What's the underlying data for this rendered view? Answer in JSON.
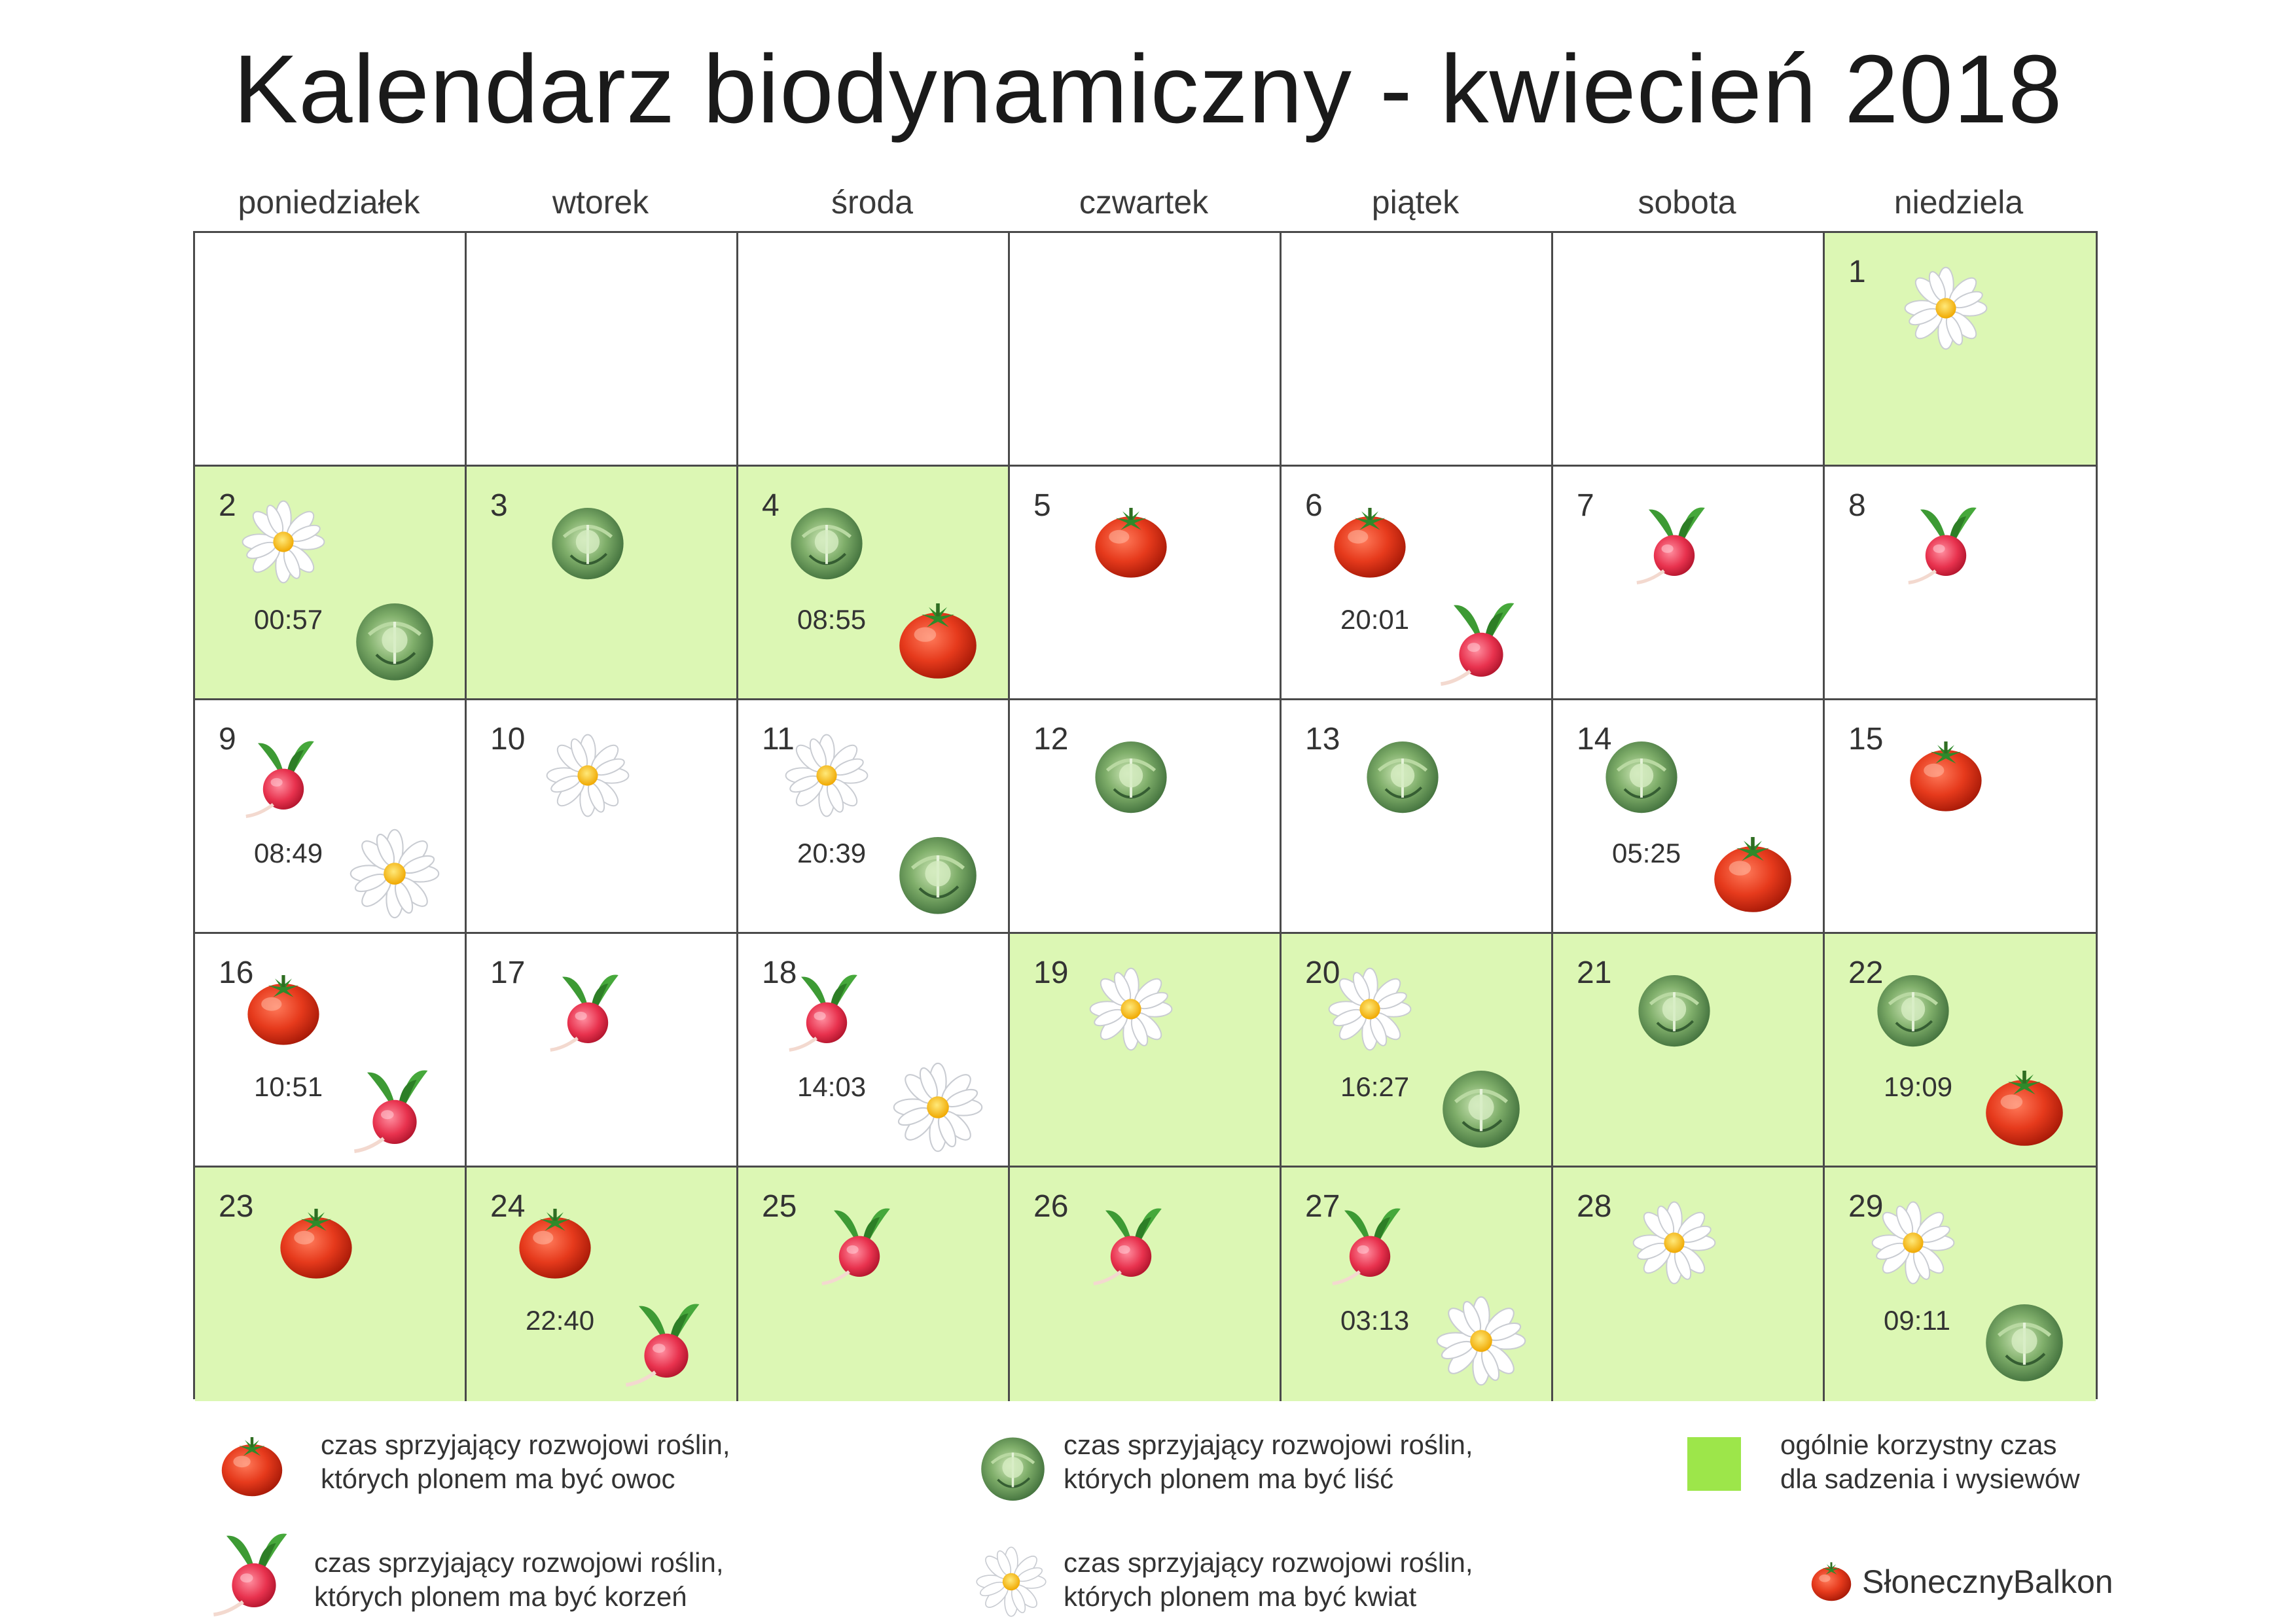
{
  "title": "Kalendarz biodynamiczny - kwiecień 2018",
  "weekdays": [
    "poniedziałek",
    "wtorek",
    "środa",
    "czwartek",
    "piątek",
    "sobota",
    "niedziela"
  ],
  "colors": {
    "favorable_bg": "#dcf7b4",
    "legend_swatch": "#9de64a",
    "grid_line": "#4a4a4a"
  },
  "cells": [
    {
      "day": "1",
      "col": 6,
      "row": 0,
      "good": true,
      "icons": [
        "flower"
      ],
      "time": ""
    },
    {
      "day": "2",
      "col": 0,
      "row": 1,
      "good": true,
      "icons": [
        "flower",
        "leaf"
      ],
      "time": "00:57"
    },
    {
      "day": "3",
      "col": 1,
      "row": 1,
      "good": true,
      "icons": [
        "leaf"
      ],
      "time": ""
    },
    {
      "day": "4",
      "col": 2,
      "row": 1,
      "good": true,
      "icons": [
        "leaf",
        "fruit"
      ],
      "time": "08:55"
    },
    {
      "day": "5",
      "col": 3,
      "row": 1,
      "good": false,
      "icons": [
        "fruit"
      ],
      "time": ""
    },
    {
      "day": "6",
      "col": 4,
      "row": 1,
      "good": false,
      "icons": [
        "fruit",
        "root"
      ],
      "time": "20:01"
    },
    {
      "day": "7",
      "col": 5,
      "row": 1,
      "good": false,
      "icons": [
        "root"
      ],
      "time": ""
    },
    {
      "day": "8",
      "col": 6,
      "row": 1,
      "good": false,
      "icons": [
        "root"
      ],
      "time": ""
    },
    {
      "day": "9",
      "col": 0,
      "row": 2,
      "good": false,
      "icons": [
        "root",
        "flower"
      ],
      "time": "08:49"
    },
    {
      "day": "10",
      "col": 1,
      "row": 2,
      "good": false,
      "icons": [
        "flower"
      ],
      "time": ""
    },
    {
      "day": "11",
      "col": 2,
      "row": 2,
      "good": false,
      "icons": [
        "flower",
        "leaf"
      ],
      "time": "20:39"
    },
    {
      "day": "12",
      "col": 3,
      "row": 2,
      "good": false,
      "icons": [
        "leaf"
      ],
      "time": ""
    },
    {
      "day": "13",
      "col": 4,
      "row": 2,
      "good": false,
      "icons": [
        "leaf"
      ],
      "time": ""
    },
    {
      "day": "14",
      "col": 5,
      "row": 2,
      "good": false,
      "icons": [
        "leaf",
        "fruit"
      ],
      "time": "05:25"
    },
    {
      "day": "15",
      "col": 6,
      "row": 2,
      "good": false,
      "icons": [
        "fruit"
      ],
      "time": ""
    },
    {
      "day": "16",
      "col": 0,
      "row": 3,
      "good": false,
      "icons": [
        "fruit",
        "root"
      ],
      "time": "10:51"
    },
    {
      "day": "17",
      "col": 1,
      "row": 3,
      "good": false,
      "icons": [
        "root"
      ],
      "time": ""
    },
    {
      "day": "18",
      "col": 2,
      "row": 3,
      "good": false,
      "icons": [
        "root",
        "flower"
      ],
      "time": "14:03"
    },
    {
      "day": "19",
      "col": 3,
      "row": 3,
      "good": true,
      "icons": [
        "flower"
      ],
      "time": ""
    },
    {
      "day": "20",
      "col": 4,
      "row": 3,
      "good": true,
      "icons": [
        "flower",
        "leaf"
      ],
      "time": "16:27"
    },
    {
      "day": "21",
      "col": 5,
      "row": 3,
      "good": true,
      "icons": [
        "leaf"
      ],
      "time": ""
    },
    {
      "day": "22",
      "col": 6,
      "row": 3,
      "good": true,
      "icons": [
        "leaf",
        "fruit"
      ],
      "time": "19:09"
    },
    {
      "day": "23",
      "col": 0,
      "row": 4,
      "good": true,
      "icons": [
        "fruit"
      ],
      "time": ""
    },
    {
      "day": "24",
      "col": 1,
      "row": 4,
      "good": true,
      "icons": [
        "fruit",
        "root"
      ],
      "time": "22:40"
    },
    {
      "day": "25",
      "col": 2,
      "row": 4,
      "good": true,
      "icons": [
        "root"
      ],
      "time": ""
    },
    {
      "day": "26",
      "col": 3,
      "row": 4,
      "good": true,
      "icons": [
        "root"
      ],
      "time": ""
    },
    {
      "day": "27",
      "col": 4,
      "row": 4,
      "good": true,
      "icons": [
        "root",
        "flower"
      ],
      "time": "03:13"
    },
    {
      "day": "28",
      "col": 5,
      "row": 4,
      "good": true,
      "icons": [
        "flower"
      ],
      "time": ""
    },
    {
      "day": "29",
      "col": 6,
      "row": 4,
      "good": true,
      "icons": [
        "flower",
        "leaf"
      ],
      "time": "09:11"
    }
  ],
  "legend": {
    "fruit": {
      "icon": "tomato-icon",
      "line1": "czas sprzyjający rozwojowi roślin,",
      "line2": "których plonem ma być owoc"
    },
    "leaf": {
      "icon": "cabbage-icon",
      "line1": "czas sprzyjający rozwojowi roślin,",
      "line2": "których plonem ma być liść"
    },
    "general": {
      "line1": "ogólnie korzystny czas",
      "line2": "dla sadzenia i wysiewów"
    },
    "root": {
      "icon": "radish-icon",
      "line1": "czas sprzyjający rozwojowi roślin,",
      "line2": "których plonem ma być korzeń"
    },
    "flower": {
      "icon": "daisy-icon",
      "line1": "czas sprzyjający rozwojowi roślin,",
      "line2": "których plonem ma być kwiat"
    }
  },
  "brand": "SłonecznyBalkon"
}
